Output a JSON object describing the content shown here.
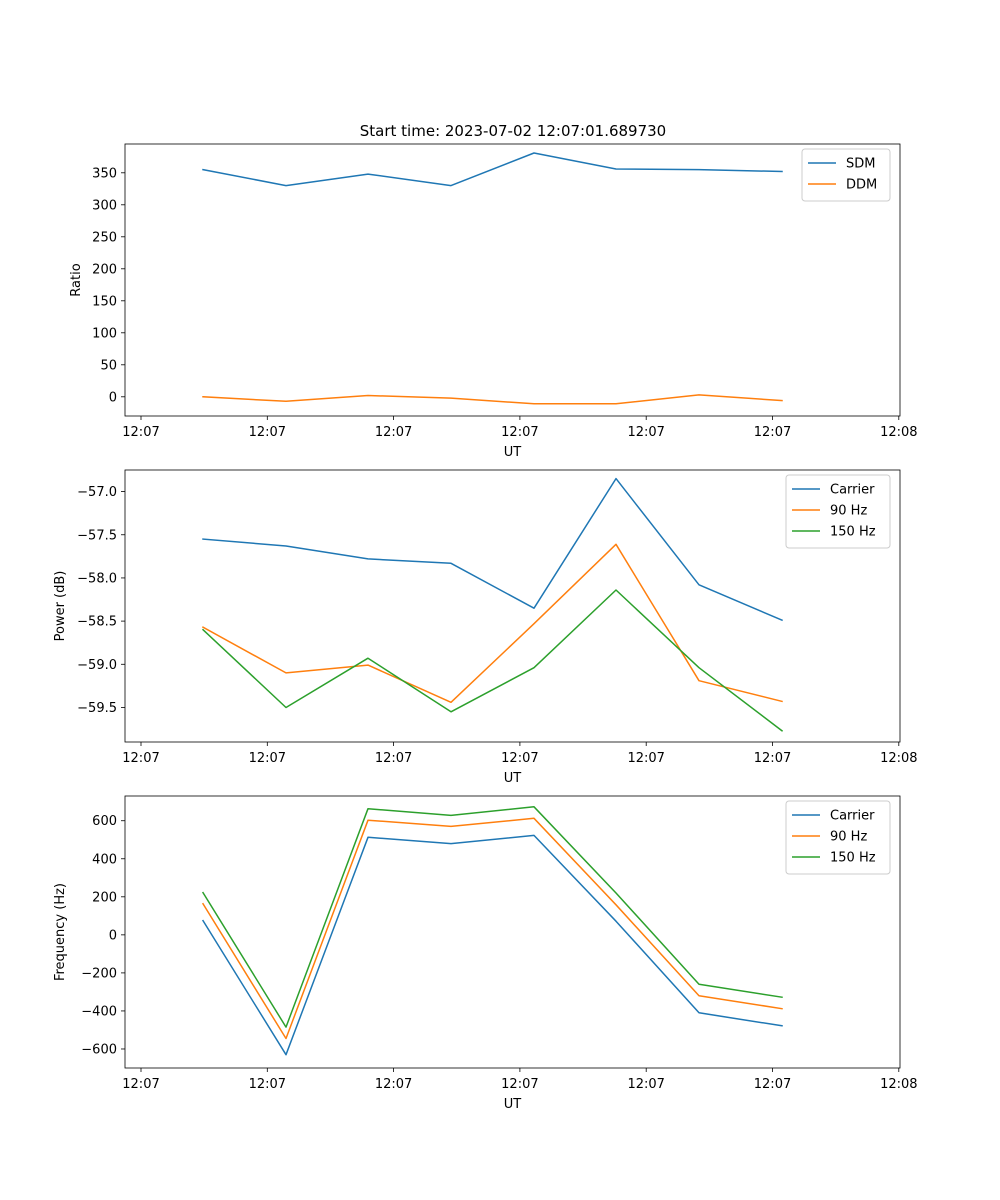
{
  "figure": {
    "title": "Start time: 2023-07-02 12:07:01.689730"
  },
  "colors": {
    "blue": "#1f77b4",
    "orange": "#ff7f0e",
    "green": "#2ca02c"
  },
  "chart_data": [
    {
      "type": "line",
      "id": "ratio",
      "title": "Start time: 2023-07-02 12:07:01.689730",
      "xlabel": "UT",
      "ylabel": "Ratio",
      "x_ticks": [
        "12:07",
        "12:07",
        "12:07",
        "12:07",
        "12:07",
        "12:07",
        "12:08"
      ],
      "y_ticks": [
        0,
        50,
        100,
        150,
        200,
        250,
        300,
        350
      ],
      "ylim": [
        -30,
        395
      ],
      "legend": "top-right",
      "series": [
        {
          "name": "SDM",
          "color": "#1f77b4",
          "values": [
            355,
            330,
            348,
            330,
            381,
            356,
            355,
            352
          ]
        },
        {
          "name": "DDM",
          "color": "#ff7f0e",
          "values": [
            0,
            -7,
            2,
            -2,
            -11,
            -11,
            3,
            -6
          ]
        }
      ]
    },
    {
      "type": "line",
      "id": "power",
      "title": "",
      "xlabel": "UT",
      "ylabel": "Power (dB)",
      "x_ticks": [
        "12:07",
        "12:07",
        "12:07",
        "12:07",
        "12:07",
        "12:07",
        "12:08"
      ],
      "y_ticks": [
        "−57.0",
        "−57.5",
        "−58.0",
        "−58.5",
        "−59.0",
        "−59.5"
      ],
      "y_tick_values": [
        -57.0,
        -57.5,
        -58.0,
        -58.5,
        -59.0,
        -59.5
      ],
      "ylim": [
        -59.9,
        -56.75
      ],
      "legend": "top-right",
      "series": [
        {
          "name": "Carrier",
          "color": "#1f77b4",
          "values": [
            -57.55,
            -57.63,
            -57.78,
            -57.83,
            -58.35,
            -56.85,
            -58.08,
            -58.49
          ]
        },
        {
          "name": "90 Hz",
          "color": "#ff7f0e",
          "values": [
            -58.57,
            -59.1,
            -59.01,
            -59.44,
            -58.53,
            -57.61,
            -59.19,
            -59.43
          ]
        },
        {
          "name": "150 Hz",
          "color": "#2ca02c",
          "values": [
            -58.6,
            -59.5,
            -58.93,
            -59.55,
            -59.04,
            -58.14,
            -59.04,
            -59.77
          ]
        }
      ]
    },
    {
      "type": "line",
      "id": "frequency",
      "title": "",
      "xlabel": "UT",
      "ylabel": "Frequency (Hz)",
      "x_ticks": [
        "12:07",
        "12:07",
        "12:07",
        "12:07",
        "12:07",
        "12:07",
        "12:08"
      ],
      "y_ticks": [
        "−600",
        "−400",
        "−200",
        "0",
        "200",
        "400",
        "600"
      ],
      "y_tick_values": [
        -600,
        -400,
        -200,
        0,
        200,
        400,
        600
      ],
      "ylim": [
        -700,
        730
      ],
      "legend": "top-right",
      "series": [
        {
          "name": "Carrier",
          "color": "#1f77b4",
          "values": [
            75,
            -630,
            513,
            480,
            523,
            72,
            -410,
            -478
          ]
        },
        {
          "name": "90 Hz",
          "color": "#ff7f0e",
          "values": [
            163,
            -545,
            603,
            570,
            613,
            158,
            -320,
            -388
          ]
        },
        {
          "name": "150 Hz",
          "color": "#2ca02c",
          "values": [
            222,
            -485,
            663,
            628,
            673,
            220,
            -260,
            -328
          ]
        }
      ]
    }
  ]
}
